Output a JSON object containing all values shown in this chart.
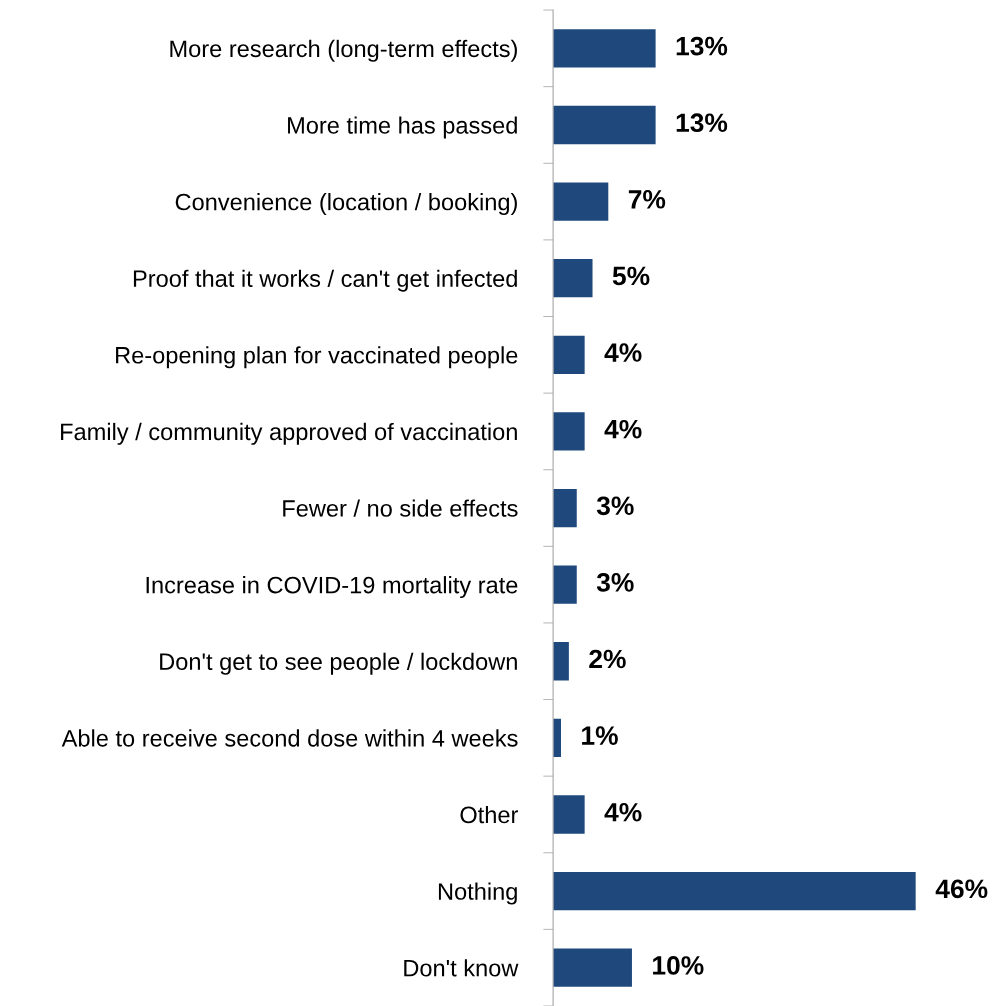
{
  "chart_data": {
    "type": "bar",
    "orientation": "horizontal",
    "categories": [
      "More research (long-term effects)",
      "More time has passed",
      "Convenience (location / booking)",
      "Proof that it works / can't get infected",
      "Re-opening plan for vaccinated people",
      "Family / community approved of vaccination",
      "Fewer / no side effects",
      "Increase in COVID-19 mortality rate",
      "Don't get to see people / lockdown",
      "Able to receive second dose within 4 weeks",
      "Other",
      "Nothing",
      "Don't know"
    ],
    "values": [
      13,
      13,
      7,
      5,
      4,
      4,
      3,
      3,
      2,
      1,
      4,
      46,
      10
    ],
    "value_labels": [
      "13%",
      "13%",
      "7%",
      "5%",
      "4%",
      "4%",
      "3%",
      "3%",
      "2%",
      "1%",
      "4%",
      "46%",
      "10%"
    ],
    "color": "#1f497d",
    "grid": false,
    "legend": false
  }
}
